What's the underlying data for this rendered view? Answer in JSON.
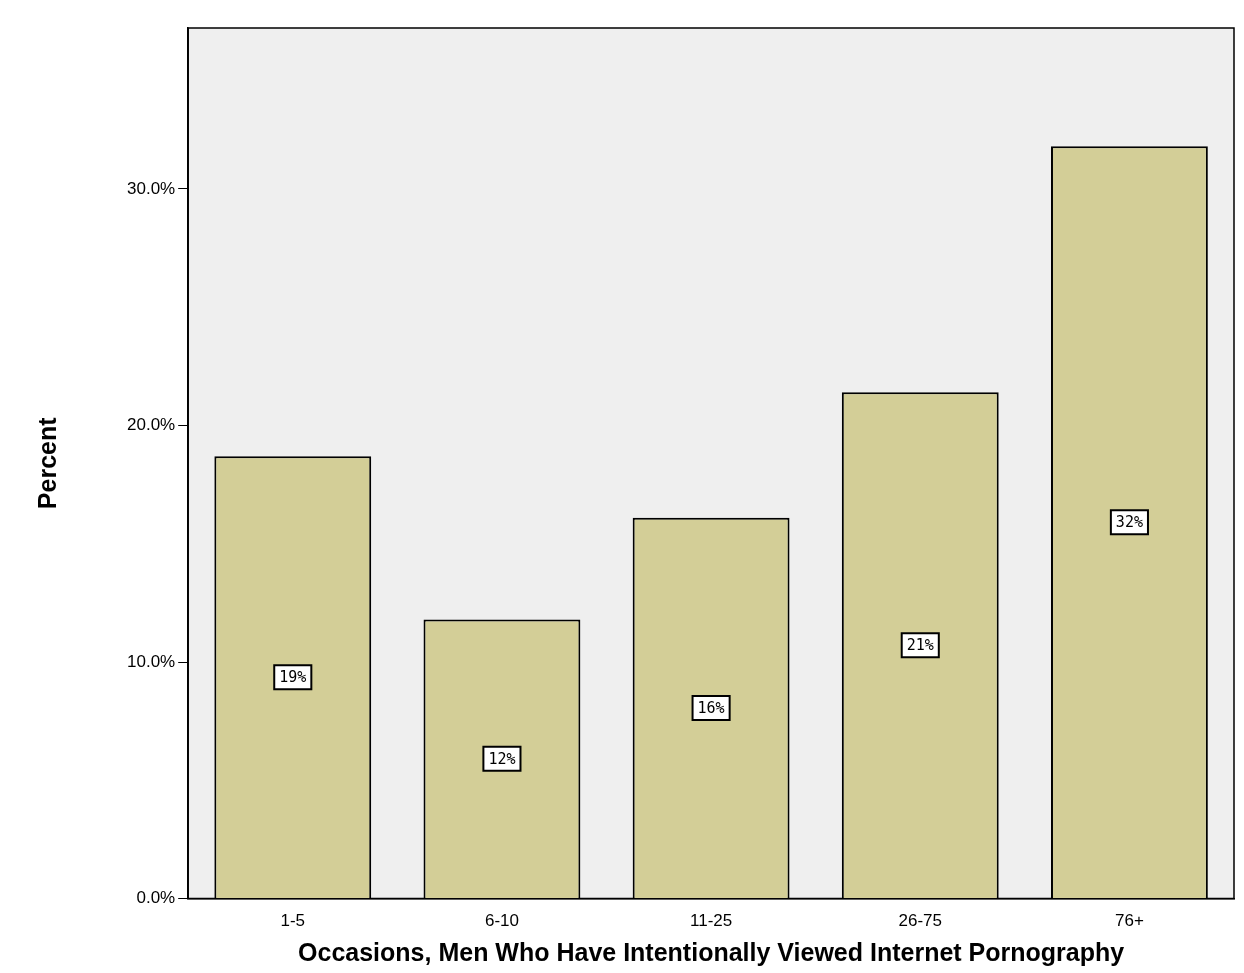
{
  "chart_data": {
    "type": "bar",
    "categories": [
      "1-5",
      "6-10",
      "11-25",
      "26-75",
      "76+"
    ],
    "values": [
      18.7,
      11.8,
      16.1,
      21.4,
      31.8
    ],
    "value_labels": [
      "19%",
      "12%",
      "16%",
      "21%",
      "32%"
    ],
    "color": "#d3ce97",
    "xlabel": "Occasions, Men Who Have Intentionally Viewed Internet Pornography",
    "ylabel": "Percent",
    "ylim": [
      0,
      36.8
    ],
    "yticks": [
      {
        "value": 0,
        "label": "0.0%"
      },
      {
        "value": 10,
        "label": "10.0%"
      },
      {
        "value": 20,
        "label": "20.0%"
      },
      {
        "value": 30,
        "label": "30.0%"
      }
    ],
    "grid": false,
    "legend": false
  }
}
